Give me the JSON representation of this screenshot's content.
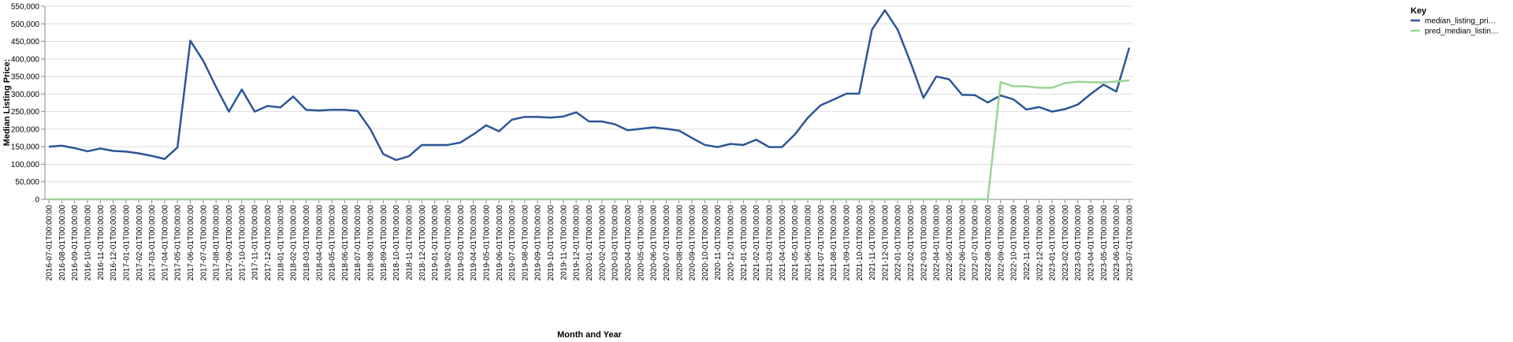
{
  "chart_data": {
    "type": "line",
    "x_label": "Month and Year",
    "y_label": "Median Listing Price:",
    "legend_title": "Key",
    "legend_position": "right",
    "grid": true,
    "categories": [
      "2016-07-01T00:00:00",
      "2016-08-01T00:00:00",
      "2016-09-01T00:00:00",
      "2016-10-01T00:00:00",
      "2016-11-01T00:00:00",
      "2016-12-01T00:00:00",
      "2017-01-01T00:00:00",
      "2017-02-01T00:00:00",
      "2017-03-01T00:00:00",
      "2017-04-01T00:00:00",
      "2017-05-01T00:00:00",
      "2017-06-01T00:00:00",
      "2017-07-01T00:00:00",
      "2017-08-01T00:00:00",
      "2017-09-01T00:00:00",
      "2017-10-01T00:00:00",
      "2017-11-01T00:00:00",
      "2017-12-01T00:00:00",
      "2018-01-01T00:00:00",
      "2018-02-01T00:00:00",
      "2018-03-01T00:00:00",
      "2018-04-01T00:00:00",
      "2018-05-01T00:00:00",
      "2018-06-01T00:00:00",
      "2018-07-01T00:00:00",
      "2018-08-01T00:00:00",
      "2018-09-01T00:00:00",
      "2018-10-01T00:00:00",
      "2018-11-01T00:00:00",
      "2018-12-01T00:00:00",
      "2019-01-01T00:00:00",
      "2019-02-01T00:00:00",
      "2019-03-01T00:00:00",
      "2019-04-01T00:00:00",
      "2019-05-01T00:00:00",
      "2019-06-01T00:00:00",
      "2019-07-01T00:00:00",
      "2019-08-01T00:00:00",
      "2019-09-01T00:00:00",
      "2019-10-01T00:00:00",
      "2019-11-01T00:00:00",
      "2019-12-01T00:00:00",
      "2020-01-01T00:00:00",
      "2020-02-01T00:00:00",
      "2020-03-01T00:00:00",
      "2020-04-01T00:00:00",
      "2020-05-01T00:00:00",
      "2020-06-01T00:00:00",
      "2020-07-01T00:00:00",
      "2020-08-01T00:00:00",
      "2020-09-01T00:00:00",
      "2020-10-01T00:00:00",
      "2020-11-01T00:00:00",
      "2020-12-01T00:00:00",
      "2021-01-01T00:00:00",
      "2021-02-01T00:00:00",
      "2021-03-01T00:00:00",
      "2021-04-01T00:00:00",
      "2021-05-01T00:00:00",
      "2021-06-01T00:00:00",
      "2021-07-01T00:00:00",
      "2021-08-01T00:00:00",
      "2021-09-01T00:00:00",
      "2021-10-01T00:00:00",
      "2021-11-01T00:00:00",
      "2021-12-01T00:00:00",
      "2022-01-01T00:00:00",
      "2022-02-01T00:00:00",
      "2022-03-01T00:00:00",
      "2022-04-01T00:00:00",
      "2022-05-01T00:00:00",
      "2022-06-01T00:00:00",
      "2022-07-01T00:00:00",
      "2022-08-01T00:00:00",
      "2022-09-01T00:00:00",
      "2022-10-01T00:00:00",
      "2022-11-01T00:00:00",
      "2022-12-01T00:00:00",
      "2023-01-01T00:00:00",
      "2023-02-01T00:00:00",
      "2023-03-01T00:00:00",
      "2023-04-01T00:00:00",
      "2023-05-01T00:00:00",
      "2023-06-01T00:00:00",
      "2023-07-01T00:00:00"
    ],
    "series": [
      {
        "name": "median_listing_pri…",
        "color": "#2c5697",
        "values": [
          150000,
          153000,
          146000,
          137000,
          145000,
          138000,
          136000,
          131000,
          124000,
          115000,
          148000,
          452000,
          395000,
          320000,
          250000,
          313000,
          250000,
          266000,
          262000,
          293000,
          255000,
          253000,
          255000,
          255000,
          252000,
          200000,
          129000,
          112000,
          123000,
          155000,
          155000,
          155000,
          162000,
          185000,
          211000,
          194000,
          227000,
          235000,
          235000,
          233000,
          236000,
          248000,
          222000,
          222000,
          214000,
          197000,
          201000,
          205000,
          201000,
          196000,
          175000,
          155000,
          149000,
          158000,
          155000,
          170000,
          149000,
          149000,
          185000,
          232000,
          268000,
          284000,
          301000,
          301000,
          484000,
          539000,
          483000,
          390000,
          289000,
          350000,
          342000,
          298000,
          297000,
          276000,
          296000,
          285000,
          256000,
          263000,
          250000,
          257000,
          270000,
          300000,
          327000,
          307000,
          432000
        ]
      },
      {
        "name": "pred_median_listin…",
        "color": "#98d594",
        "values": [
          0,
          0,
          0,
          0,
          0,
          0,
          0,
          0,
          0,
          0,
          0,
          0,
          0,
          0,
          0,
          0,
          0,
          0,
          0,
          0,
          0,
          0,
          0,
          0,
          0,
          0,
          0,
          0,
          0,
          0,
          0,
          0,
          0,
          0,
          0,
          0,
          0,
          0,
          0,
          0,
          0,
          0,
          0,
          0,
          0,
          0,
          0,
          0,
          0,
          0,
          0,
          0,
          0,
          0,
          0,
          0,
          0,
          0,
          0,
          0,
          0,
          0,
          0,
          0,
          0,
          0,
          0,
          0,
          0,
          0,
          0,
          0,
          0,
          0,
          334000,
          322000,
          322000,
          318000,
          318000,
          331000,
          335000,
          334000,
          333000,
          336000,
          339000
        ]
      }
    ],
    "ylim": [
      0,
      550000
    ],
    "yticks": [
      0,
      {
        "value": 50000,
        "label": "50,000"
      },
      {
        "value": 100000,
        "label": "100,000"
      },
      {
        "value": 150000,
        "label": "150,000"
      },
      {
        "value": 200000,
        "label": "200,000"
      },
      {
        "value": 250000,
        "label": "250,000"
      },
      {
        "value": 300000,
        "label": "300,000"
      },
      {
        "value": 350000,
        "label": "350,000"
      },
      {
        "value": 400000,
        "label": "400,000"
      },
      {
        "value": 450000,
        "label": "450,000"
      },
      {
        "value": 500000,
        "label": "500,000"
      },
      {
        "value": 550000,
        "label": "550,000"
      }
    ]
  }
}
